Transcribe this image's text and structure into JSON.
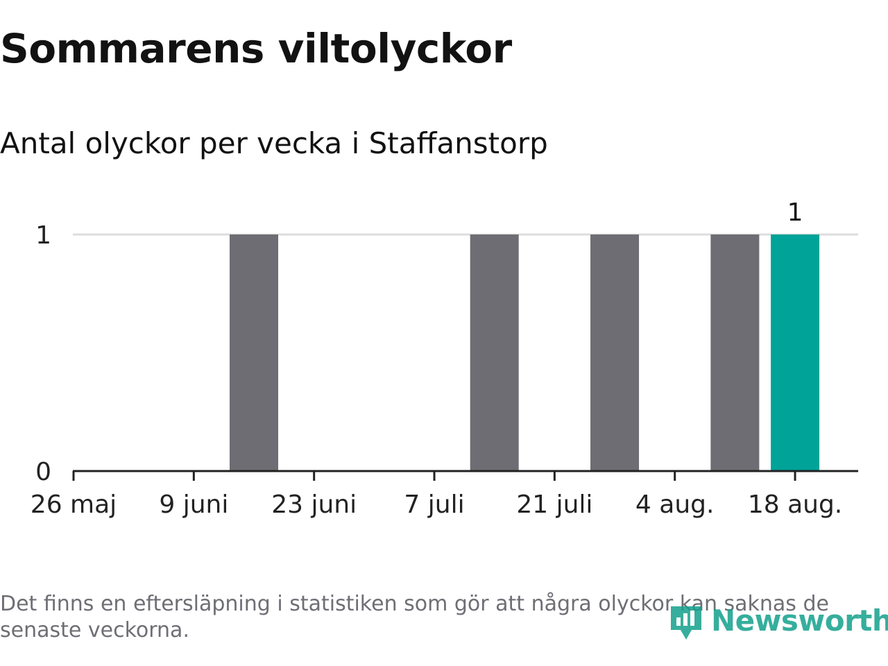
{
  "title": "Sommarens viltolyckor",
  "subtitle": "Antal olyckor per vecka i Staffanstorp",
  "footnote": "Det finns en eftersläpning i statistiken som gör att några olyckor kan saknas de senaste veckorna.",
  "logo": {
    "text": "Newsworthy",
    "icon": "newsworthy-logo-icon"
  },
  "colors": {
    "bar": "#6e6d73",
    "highlight": "#00a398",
    "grid": "#dddddd",
    "axis": "#222222",
    "brand": "#14a08c"
  },
  "chart_data": {
    "type": "bar",
    "x": [
      "26 maj",
      "2 juni",
      "9 juni",
      "16 juni",
      "23 juni",
      "30 juni",
      "7 juli",
      "14 juli",
      "21 juli",
      "28 juli",
      "4 aug.",
      "11 aug.",
      "18 aug."
    ],
    "values": [
      0,
      0,
      0,
      1,
      0,
      0,
      0,
      1,
      0,
      1,
      0,
      1,
      1
    ],
    "highlight_index": 12,
    "data_labels": [
      {
        "index": 12,
        "text": "1"
      }
    ],
    "xticks": [
      "26 maj",
      "9 juni",
      "23 juni",
      "7 juli",
      "21 juli",
      "4 aug.",
      "18 aug."
    ],
    "yticks": [
      "0",
      "1"
    ],
    "ylim": [
      0,
      1
    ],
    "grid": true,
    "legend": "none",
    "title": "Sommarens viltolyckor",
    "subtitle": "Antal olyckor per vecka i Staffanstorp",
    "xlabel": "",
    "ylabel": ""
  }
}
